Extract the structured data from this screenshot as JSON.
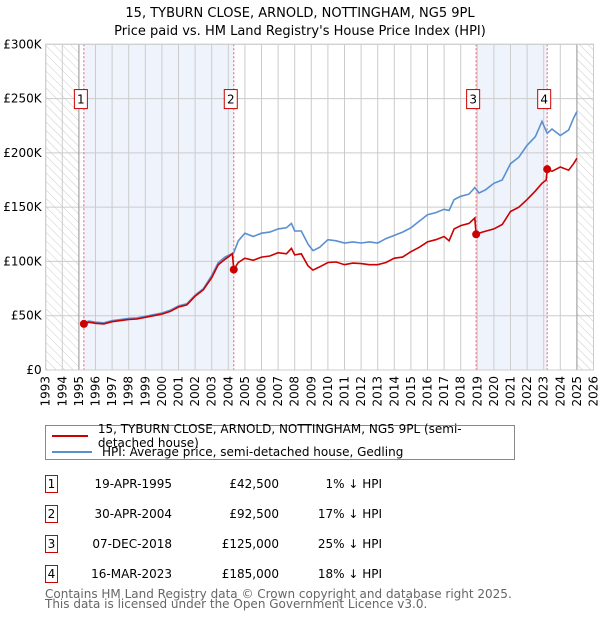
{
  "title_line1": "15, TYBURN CLOSE, ARNOLD, NOTTINGHAM, NG5 9PL",
  "title_line2": "Price paid vs. HM Land Registry's House Price Index (HPI)",
  "colors": {
    "property": "#cc0000",
    "hpi": "#5b8fd0",
    "shade": "#eef3fc",
    "grid": "#cccccc"
  },
  "chart_data": {
    "type": "line",
    "title": "15, TYBURN CLOSE, ARNOLD, NOTTINGHAM, NG5 9PL — Price paid vs. HM Land Registry's House Price Index (HPI)",
    "xlim": [
      1993,
      2026
    ],
    "ylim": [
      0,
      300000
    ],
    "x_ticks": [
      "1993",
      "1994",
      "1995",
      "1996",
      "1997",
      "1998",
      "1999",
      "2000",
      "2001",
      "2002",
      "2003",
      "2004",
      "2005",
      "2006",
      "2007",
      "2008",
      "2009",
      "2010",
      "2011",
      "2012",
      "2013",
      "2014",
      "2015",
      "2016",
      "2017",
      "2018",
      "2019",
      "2020",
      "2021",
      "2022",
      "2023",
      "2024",
      "2025",
      "2026"
    ],
    "y_ticks": [
      {
        "v": 0,
        "label": "£0"
      },
      {
        "v": 50000,
        "label": "£50K"
      },
      {
        "v": 100000,
        "label": "£100K"
      },
      {
        "v": 150000,
        "label": "£150K"
      },
      {
        "v": 200000,
        "label": "£200K"
      },
      {
        "v": 250000,
        "label": "£250K"
      },
      {
        "v": 300000,
        "label": "£300K"
      }
    ],
    "grid": true,
    "hatched_ranges": [
      [
        1993,
        1995.0
      ],
      [
        2025.0,
        2026
      ]
    ],
    "series": [
      {
        "name": "15, TYBURN CLOSE, ARNOLD, NOTTINGHAM, NG5 9PL (semi-detached house)",
        "color": "#cc0000",
        "x": [
          1995.3,
          1995.6,
          1996,
          1996.5,
          1997,
          1997.5,
          1998,
          1998.5,
          1999,
          1999.5,
          2000,
          2000.5,
          2001,
          2001.5,
          2002,
          2002.5,
          2003,
          2003.4,
          2003.8,
          2004.25,
          2004.33,
          2004.6,
          2005,
          2005.5,
          2006,
          2006.5,
          2007,
          2007.5,
          2007.8,
          2008,
          2008.4,
          2008.8,
          2009.1,
          2009.5,
          2010,
          2010.5,
          2011,
          2011.5,
          2012,
          2012.5,
          2013,
          2013.5,
          2014,
          2014.5,
          2015,
          2015.5,
          2016,
          2016.5,
          2017,
          2017.3,
          2017.6,
          2018,
          2018.5,
          2018.85,
          2018.93,
          2019.3,
          2020,
          2020.5,
          2021,
          2021.5,
          2022,
          2022.5,
          2022.9,
          2023.15,
          2023.21,
          2023.5,
          2024,
          2024.5,
          2024.8,
          2025
        ],
        "y": [
          42500,
          44000,
          43000,
          42500,
          44500,
          45500,
          46500,
          47000,
          48500,
          50000,
          51500,
          54000,
          58000,
          60000,
          68000,
          74000,
          85000,
          97000,
          102000,
          107000,
          92500,
          99000,
          103000,
          101000,
          104000,
          105000,
          108000,
          107000,
          112000,
          106000,
          107000,
          96000,
          92000,
          95000,
          99000,
          99500,
          97000,
          98500,
          98000,
          97000,
          97000,
          99000,
          103000,
          104000,
          109000,
          113000,
          118000,
          120000,
          123000,
          119000,
          130000,
          133000,
          135000,
          140000,
          125000,
          127000,
          130000,
          134000,
          146000,
          150000,
          157000,
          165000,
          172000,
          175000,
          185000,
          183000,
          187000,
          184000,
          190000,
          195000
        ]
      },
      {
        "name": "HPI: Average price, semi-detached house, Gedling",
        "color": "#5b8fd0",
        "x": [
          1995.3,
          1995.6,
          1996,
          1996.5,
          1997,
          1997.5,
          1998,
          1998.5,
          1999,
          1999.5,
          2000,
          2000.5,
          2001,
          2001.5,
          2002,
          2002.5,
          2003,
          2003.4,
          2003.8,
          2004.33,
          2004.6,
          2005,
          2005.5,
          2006,
          2006.5,
          2007,
          2007.5,
          2007.8,
          2008,
          2008.4,
          2008.8,
          2009.1,
          2009.5,
          2010,
          2010.5,
          2011,
          2011.5,
          2012,
          2012.5,
          2013,
          2013.5,
          2014,
          2014.5,
          2015,
          2015.5,
          2016,
          2016.5,
          2017,
          2017.3,
          2017.6,
          2018,
          2018.5,
          2018.85,
          2019.1,
          2019.5,
          2020,
          2020.5,
          2021,
          2021.5,
          2022,
          2022.5,
          2022.9,
          2023.21,
          2023.5,
          2024,
          2024.5,
          2024.8,
          2025
        ],
        "y": [
          43500,
          45000,
          44000,
          43500,
          45500,
          46500,
          47500,
          48000,
          49500,
          51000,
          52500,
          55000,
          59000,
          61000,
          69000,
          75000,
          87000,
          99000,
          104000,
          108000,
          119000,
          126000,
          123000,
          126000,
          127000,
          130000,
          131000,
          135000,
          128000,
          128000,
          116000,
          110000,
          113000,
          120000,
          119000,
          117000,
          118000,
          117000,
          118000,
          117000,
          121000,
          124000,
          127000,
          131000,
          137000,
          143000,
          145000,
          148000,
          147000,
          157000,
          160000,
          162000,
          168000,
          163000,
          166000,
          172000,
          175000,
          190000,
          196000,
          207000,
          215000,
          229000,
          218000,
          222000,
          216000,
          221000,
          232000,
          238000
        ]
      }
    ],
    "sales": [
      {
        "id": "1",
        "x": 1995.3,
        "price": 42500
      },
      {
        "id": "2",
        "x": 2004.33,
        "price": 92500
      },
      {
        "id": "3",
        "x": 2018.93,
        "price": 125000
      },
      {
        "id": "4",
        "x": 2023.21,
        "price": 185000
      }
    ],
    "shaded_ranges": [
      [
        1995.3,
        2004.33
      ],
      [
        2018.93,
        2023.21
      ]
    ]
  },
  "legend": {
    "property": "15, TYBURN CLOSE, ARNOLD, NOTTINGHAM, NG5 9PL (semi-detached house)",
    "hpi": "HPI: Average price, semi-detached house, Gedling"
  },
  "transactions": [
    {
      "num": "1",
      "date": "19-APR-1995",
      "price": "£42,500",
      "diff": "1% ↓ HPI"
    },
    {
      "num": "2",
      "date": "30-APR-2004",
      "price": "£92,500",
      "diff": "17% ↓ HPI"
    },
    {
      "num": "3",
      "date": "07-DEC-2018",
      "price": "£125,000",
      "diff": "25% ↓ HPI"
    },
    {
      "num": "4",
      "date": "16-MAR-2023",
      "price": "£185,000",
      "diff": "18% ↓ HPI"
    }
  ],
  "footer": {
    "line1": "Contains HM Land Registry data © Crown copyright and database right 2025.",
    "line2": "This data is licensed under the Open Government Licence v3.0."
  }
}
